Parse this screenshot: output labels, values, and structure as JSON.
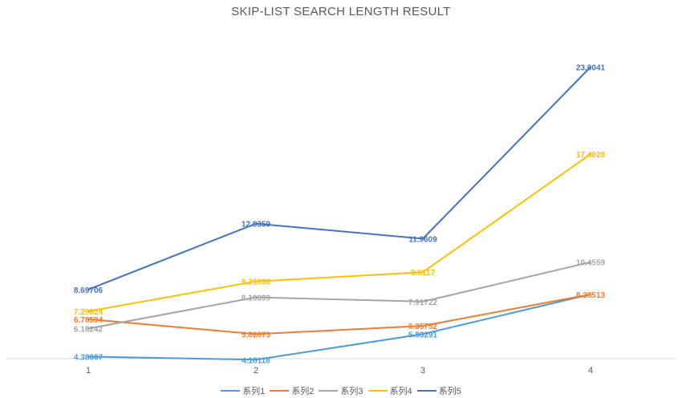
{
  "chart_data": {
    "type": "line",
    "title": "SKIP-LIST SEARCH LENGTH RESULT",
    "categories": [
      "1",
      "2",
      "3",
      "4"
    ],
    "xlabel": "",
    "ylabel": "",
    "grid": false,
    "legend_position": "bottom",
    "series": [
      {
        "name": "系列1",
        "color": "#4A9BD6",
        "values": [
          4.38007,
          4.18118,
          5.83291,
          8.38513
        ],
        "labels": [
          "4.38007",
          "4.18118",
          "5.83291",
          ""
        ]
      },
      {
        "name": "系列2",
        "color": "#ED7D31",
        "values": [
          6.78594,
          5.82873,
          6.35752,
          8.38513
        ],
        "labels": [
          "6.78594",
          "5.82873",
          "6.35752",
          "8.38513"
        ]
      },
      {
        "name": "系列3",
        "color": "#A5A5A5",
        "values": [
          6.18242,
          8.19699,
          7.91722,
          10.4559
        ],
        "labels": [
          "6.18242",
          "8.19699",
          "7.91722",
          "10.4559"
        ]
      },
      {
        "name": "系列4",
        "color": "#FFC000",
        "values": [
          7.29624,
          9.21836,
          9.8117,
          17.4028
        ],
        "labels": [
          "7.29624",
          "9.21836",
          "9.8117",
          "17.4028"
        ]
      },
      {
        "name": "系列5",
        "color": "#4472C4",
        "values": [
          8.69706,
          12.9359,
          11.9609,
          23.0041
        ],
        "labels": [
          "8.69706",
          "12.9359",
          "11.9609",
          "23.0041"
        ]
      }
    ]
  }
}
